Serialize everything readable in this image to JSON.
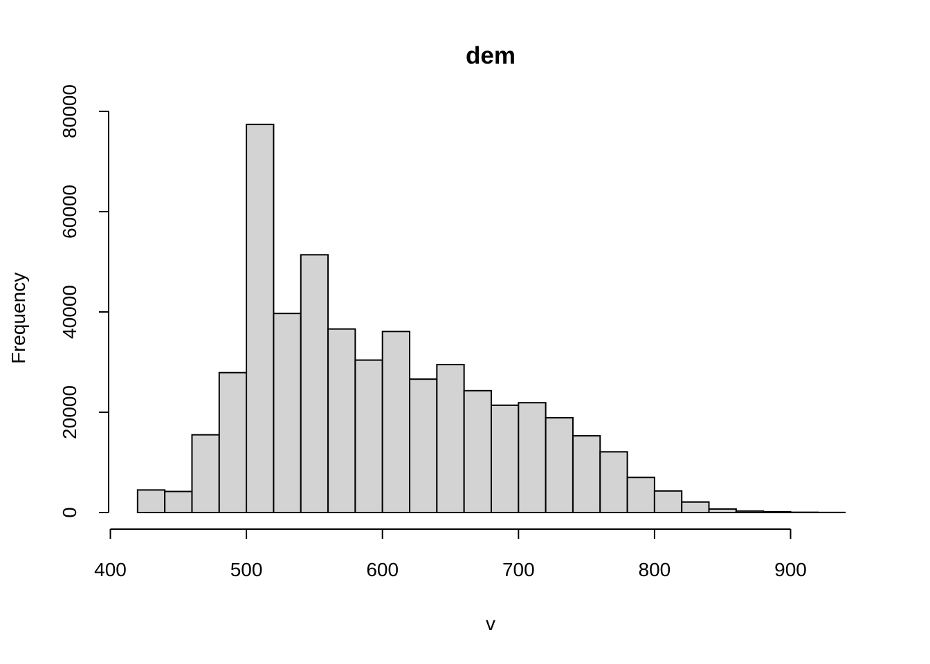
{
  "chart_data": {
    "type": "bar",
    "title": "dem",
    "xlabel": "v",
    "ylabel": "Frequency",
    "xlim": [
      400,
      940
    ],
    "ylim": [
      0,
      80000
    ],
    "x_ticks": [
      400,
      500,
      600,
      700,
      800,
      900
    ],
    "y_ticks": [
      0,
      20000,
      40000,
      60000,
      80000
    ],
    "bin_width": 20,
    "bins": [
      {
        "start": 420,
        "end": 440,
        "count": 4500
      },
      {
        "start": 440,
        "end": 460,
        "count": 4200
      },
      {
        "start": 460,
        "end": 480,
        "count": 15500
      },
      {
        "start": 480,
        "end": 500,
        "count": 27900
      },
      {
        "start": 500,
        "end": 520,
        "count": 77400
      },
      {
        "start": 520,
        "end": 540,
        "count": 39700
      },
      {
        "start": 540,
        "end": 560,
        "count": 51400
      },
      {
        "start": 560,
        "end": 580,
        "count": 36600
      },
      {
        "start": 580,
        "end": 600,
        "count": 30400
      },
      {
        "start": 600,
        "end": 620,
        "count": 36100
      },
      {
        "start": 620,
        "end": 640,
        "count": 26600
      },
      {
        "start": 640,
        "end": 660,
        "count": 29500
      },
      {
        "start": 660,
        "end": 680,
        "count": 24300
      },
      {
        "start": 680,
        "end": 700,
        "count": 21400
      },
      {
        "start": 700,
        "end": 720,
        "count": 21900
      },
      {
        "start": 720,
        "end": 740,
        "count": 18900
      },
      {
        "start": 740,
        "end": 760,
        "count": 15300
      },
      {
        "start": 760,
        "end": 780,
        "count": 12100
      },
      {
        "start": 780,
        "end": 800,
        "count": 7000
      },
      {
        "start": 800,
        "end": 820,
        "count": 4300
      },
      {
        "start": 820,
        "end": 840,
        "count": 2100
      },
      {
        "start": 840,
        "end": 860,
        "count": 700
      },
      {
        "start": 860,
        "end": 880,
        "count": 300
      },
      {
        "start": 880,
        "end": 900,
        "count": 150
      },
      {
        "start": 900,
        "end": 920,
        "count": 50
      },
      {
        "start": 920,
        "end": 940,
        "count": 20
      }
    ],
    "colors": {
      "bar_fill": "#d3d3d3",
      "bar_stroke": "#000000"
    },
    "grid": false
  }
}
